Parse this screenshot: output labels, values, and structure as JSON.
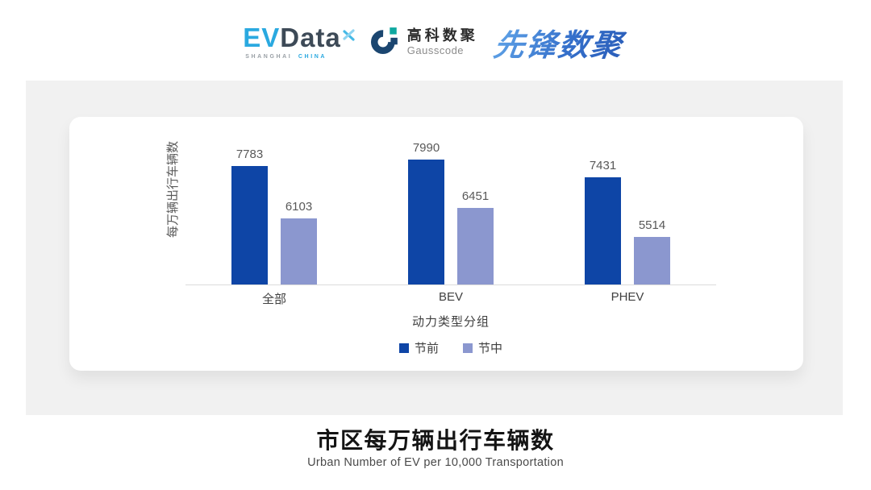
{
  "header": {
    "evdata": {
      "part1": "EV",
      "part2": "Data",
      "sub1": "SHANGHAI",
      "sub2": "CHINA"
    },
    "gausscode": {
      "name_cn": "高科数聚",
      "name_en": "Gausscode"
    },
    "pioneer": {
      "wordmark": "先锋数聚"
    }
  },
  "chart_data": {
    "type": "bar",
    "title": "市区每万辆出行车辆数",
    "subtitle": "Urban Number of EV per 10,000 Transportation",
    "xlabel": "动力类型分组",
    "ylabel": "每万辆出行车辆数",
    "categories": [
      "全部",
      "BEV",
      "PHEV"
    ],
    "series": [
      {
        "name": "节前",
        "color": "#0E45A6",
        "values": [
          7783,
          7990,
          7431
        ]
      },
      {
        "name": "节中",
        "color": "#8B97CF",
        "values": [
          6103,
          6451,
          5514
        ]
      }
    ],
    "ylim": [
      4000,
      8500
    ],
    "grid": false,
    "legend_position": "bottom",
    "value_labels": true
  },
  "colors": {
    "panel_bg": "#F1F1F1",
    "card_bg": "#FFFFFF",
    "axis_line": "#DBDBDB",
    "evdata_blue": "#2AA9E0",
    "evdata_dark": "#3D4A57",
    "gauss_navy": "#1B4670",
    "gauss_teal": "#0FA8A0",
    "pioneer_blue": "#3875CC"
  }
}
